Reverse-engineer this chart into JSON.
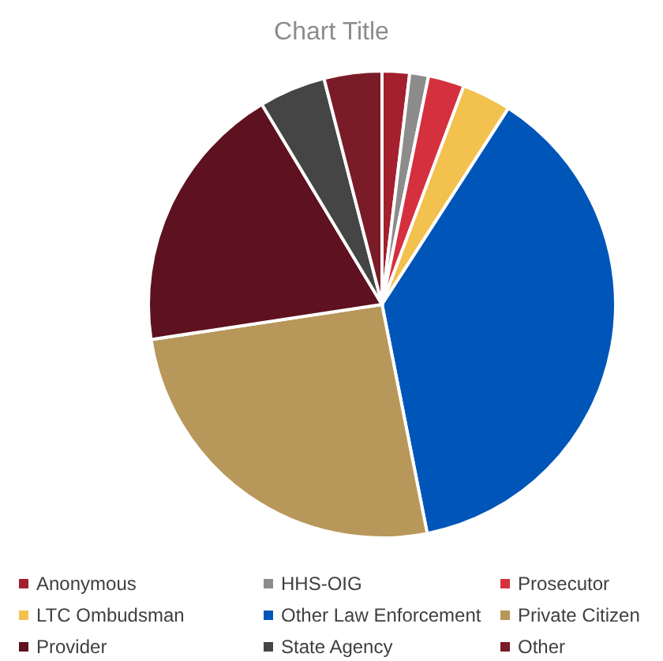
{
  "chart_data": {
    "type": "pie",
    "title": "Chart Title",
    "categories": [
      "Anonymous",
      "HHS-OIG",
      "Prosecutor",
      "LTC Ombudsman",
      "Other Law Enforcement",
      "Private Citizen",
      "Provider",
      "State Agency",
      "Other"
    ],
    "values": [
      1.9,
      1.3,
      2.5,
      3.4,
      37.8,
      25.7,
      18.8,
      4.6,
      4.0
    ],
    "colors": [
      "#a3202e",
      "#8c8c8c",
      "#d5303e",
      "#f2c14e",
      "#0056b8",
      "#b8975a",
      "#5e111e",
      "#454545",
      "#7a1c28"
    ],
    "legend": "bottom"
  }
}
